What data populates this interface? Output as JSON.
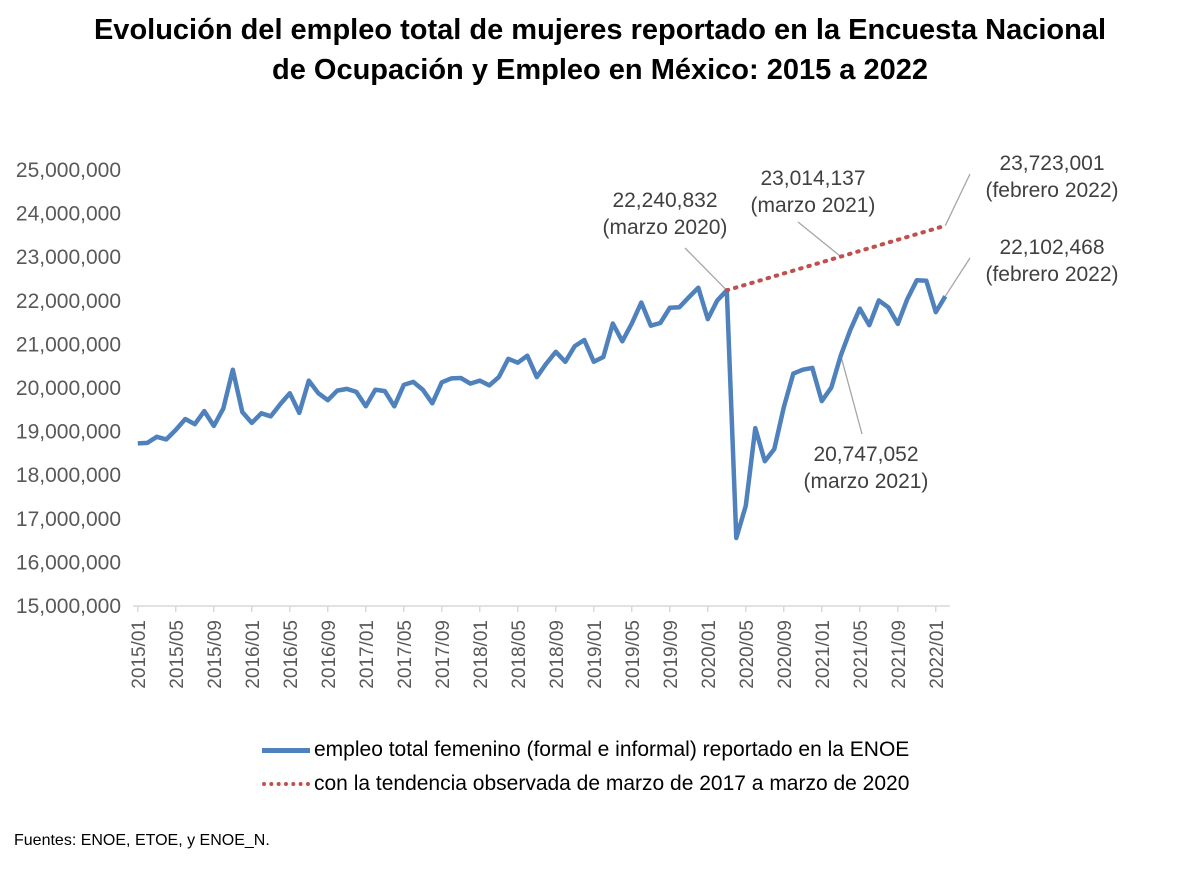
{
  "title": {
    "line1": "Evolución del empleo total de mujeres reportado en la Encuesta Nacional",
    "line2": "de Ocupación y Empleo en México: 2015 a 2022"
  },
  "source": "Fuentes: ENOE, ETOE, y ENOE_N.",
  "colors": {
    "actual": "#4f81bd",
    "trend": "#c0504d",
    "axis": "#d9d9d9",
    "leader": "#a6a6a6"
  },
  "chart_data": {
    "type": "line",
    "title": "Evolución del empleo total de mujeres reportado en la Encuesta Nacional de Ocupación y Empleo en México: 2015 a 2022",
    "ylim": [
      15000000,
      25000000
    ],
    "yticks": [
      "15,000,000",
      "16,000,000",
      "17,000,000",
      "18,000,000",
      "19,000,000",
      "20,000,000",
      "21,000,000",
      "22,000,000",
      "23,000,000",
      "24,000,000",
      "25,000,000"
    ],
    "xticks": [
      "2015/01",
      "2015/05",
      "2015/09",
      "2016/01",
      "2016/05",
      "2016/09",
      "2017/01",
      "2017/05",
      "2017/09",
      "2018/01",
      "2018/05",
      "2018/09",
      "2019/01",
      "2019/05",
      "2019/09",
      "2020/01",
      "2020/05",
      "2020/09",
      "2021/01",
      "2021/05",
      "2021/09",
      "2022/01"
    ],
    "grid": false,
    "legend_position": "bottom",
    "series": [
      {
        "name": "empleo total femenino (formal e informal) reportado en la ENOE",
        "style": "solid",
        "x": [
          "2015/01",
          "2015/02",
          "2015/03",
          "2015/04",
          "2015/05",
          "2015/06",
          "2015/07",
          "2015/08",
          "2015/09",
          "2015/10",
          "2015/11",
          "2015/12",
          "2016/01",
          "2016/02",
          "2016/03",
          "2016/04",
          "2016/05",
          "2016/06",
          "2016/07",
          "2016/08",
          "2016/09",
          "2016/10",
          "2016/11",
          "2016/12",
          "2017/01",
          "2017/02",
          "2017/03",
          "2017/04",
          "2017/05",
          "2017/06",
          "2017/07",
          "2017/08",
          "2017/09",
          "2017/10",
          "2017/11",
          "2017/12",
          "2018/01",
          "2018/02",
          "2018/03",
          "2018/04",
          "2018/05",
          "2018/06",
          "2018/07",
          "2018/08",
          "2018/09",
          "2018/10",
          "2018/11",
          "2018/12",
          "2019/01",
          "2019/02",
          "2019/03",
          "2019/04",
          "2019/05",
          "2019/06",
          "2019/07",
          "2019/08",
          "2019/09",
          "2019/10",
          "2019/11",
          "2019/12",
          "2020/01",
          "2020/02",
          "2020/03",
          "2020/04",
          "2020/05",
          "2020/06",
          "2020/07",
          "2020/08",
          "2020/09",
          "2020/10",
          "2020/11",
          "2020/12",
          "2021/01",
          "2021/02",
          "2021/03",
          "2021/04",
          "2021/05",
          "2021/06",
          "2021/07",
          "2021/08",
          "2021/09",
          "2021/10",
          "2021/11",
          "2021/12",
          "2022/01",
          "2022/02"
        ],
        "values": [
          18730000,
          18740000,
          18880000,
          18820000,
          19040000,
          19290000,
          19170000,
          19470000,
          19130000,
          19530000,
          20420000,
          19450000,
          19200000,
          19420000,
          19350000,
          19630000,
          19880000,
          19430000,
          20170000,
          19880000,
          19720000,
          19940000,
          19980000,
          19910000,
          19580000,
          19960000,
          19930000,
          19580000,
          20070000,
          20140000,
          19960000,
          19650000,
          20130000,
          20220000,
          20230000,
          20100000,
          20170000,
          20060000,
          20250000,
          20670000,
          20580000,
          20740000,
          20250000,
          20560000,
          20830000,
          20600000,
          20960000,
          21100000,
          20600000,
          20710000,
          21480000,
          21070000,
          21480000,
          21960000,
          21430000,
          21490000,
          21840000,
          21850000,
          22080000,
          22300000,
          21580000,
          22010000,
          22240832,
          16560000,
          17300000,
          19080000,
          18320000,
          18600000,
          19560000,
          20330000,
          20420000,
          20460000,
          19700000,
          20010000,
          20747052,
          21330000,
          21820000,
          21440000,
          22010000,
          21850000,
          21470000,
          22040000,
          22470000,
          22460000,
          21740000,
          22102468
        ]
      },
      {
        "name": "con la tendencia observada de marzo de 2017 a marzo de 2020",
        "style": "dotted",
        "x": [
          "2020/03",
          "2021/03",
          "2022/02"
        ],
        "values": [
          22240832,
          23014137,
          23723001
        ]
      }
    ],
    "annotations": [
      {
        "value": "22,240,832",
        "period": "(marzo 2020)"
      },
      {
        "value": "23,014,137",
        "period": "(marzo 2021)"
      },
      {
        "value": "23,723,001",
        "period": "(febrero 2022)"
      },
      {
        "value": "22,102,468",
        "period": "(febrero 2022)"
      },
      {
        "value": "20,747,052",
        "period": "(marzo 2021)"
      }
    ]
  }
}
